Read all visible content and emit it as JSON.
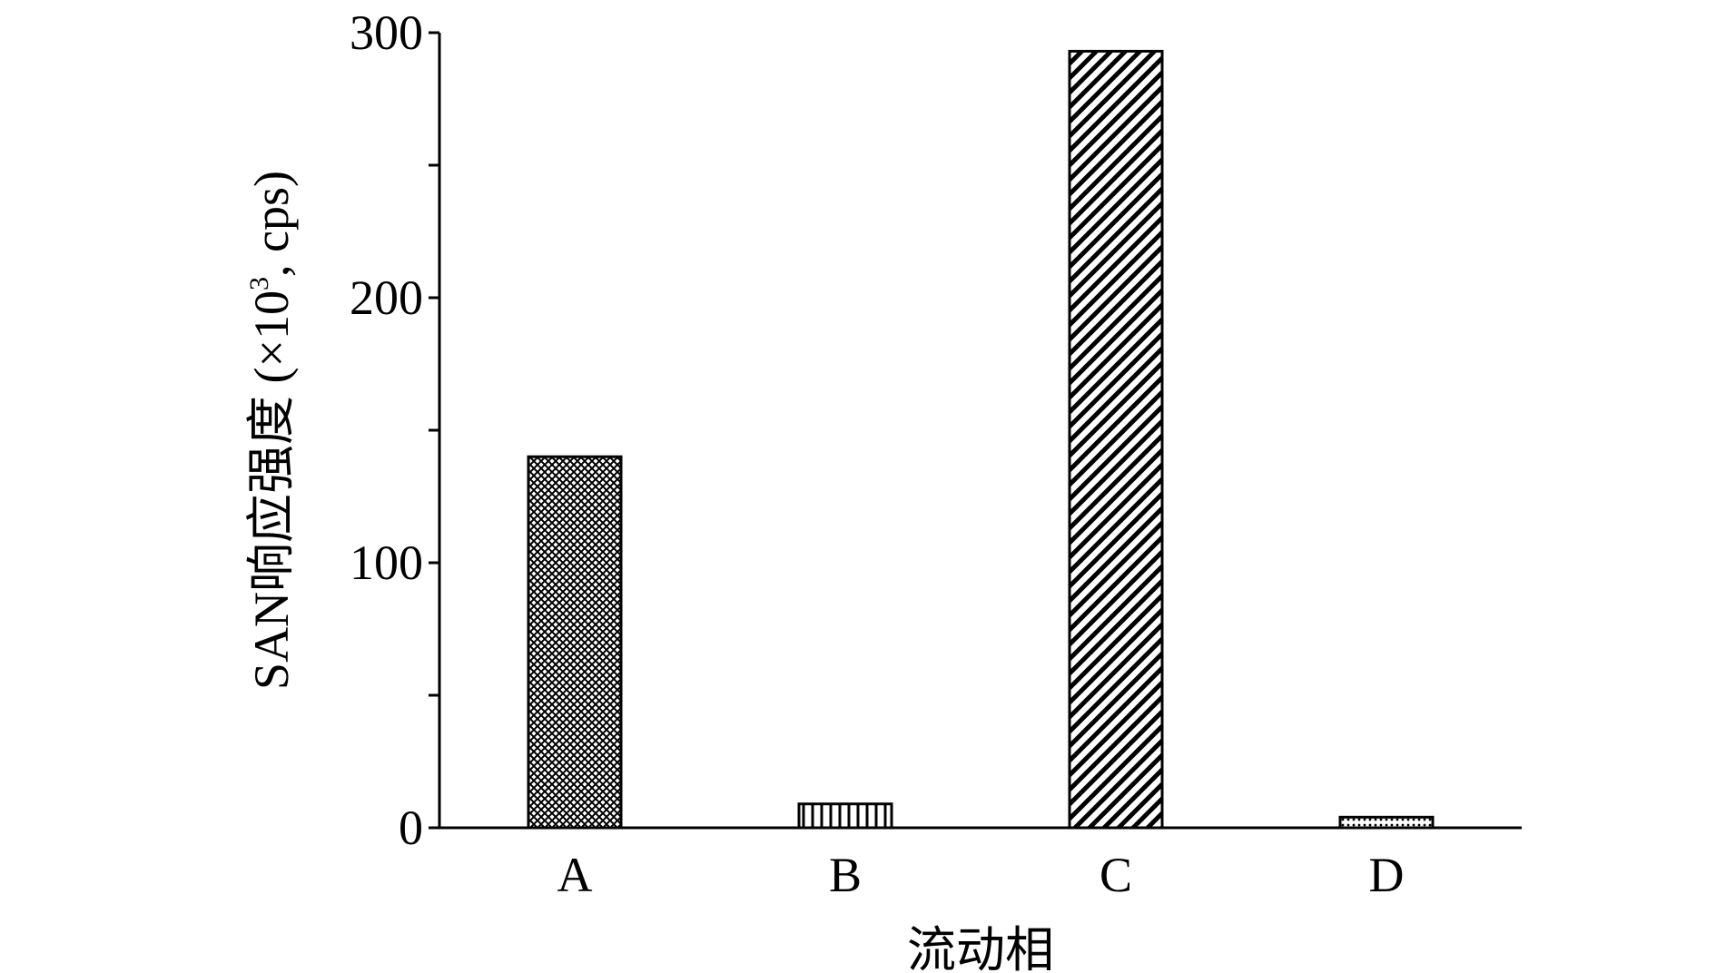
{
  "chart_data": {
    "type": "bar",
    "title": "",
    "xlabel": "流动相",
    "ylabel_main": "SAN响应强度 (×10",
    "ylabel_sup": "3",
    "ylabel_tail": ", cps)",
    "categories": [
      "A",
      "B",
      "C",
      "D"
    ],
    "values": [
      140,
      9,
      293,
      4
    ],
    "ylim": [
      0,
      300
    ],
    "yticks": [
      0,
      100,
      200,
      300
    ],
    "yticks_labels": [
      "0",
      "100",
      "200",
      "300"
    ],
    "minor_ticks": [
      50,
      150,
      250
    ],
    "grid": false,
    "legend": "none",
    "bar_patterns": [
      "crosshatch",
      "vertical-lines",
      "diagonal-lines",
      "dots"
    ],
    "colors": {
      "axis": "#000000",
      "bar_fill": "#ffffff",
      "pattern": "#000000"
    }
  }
}
